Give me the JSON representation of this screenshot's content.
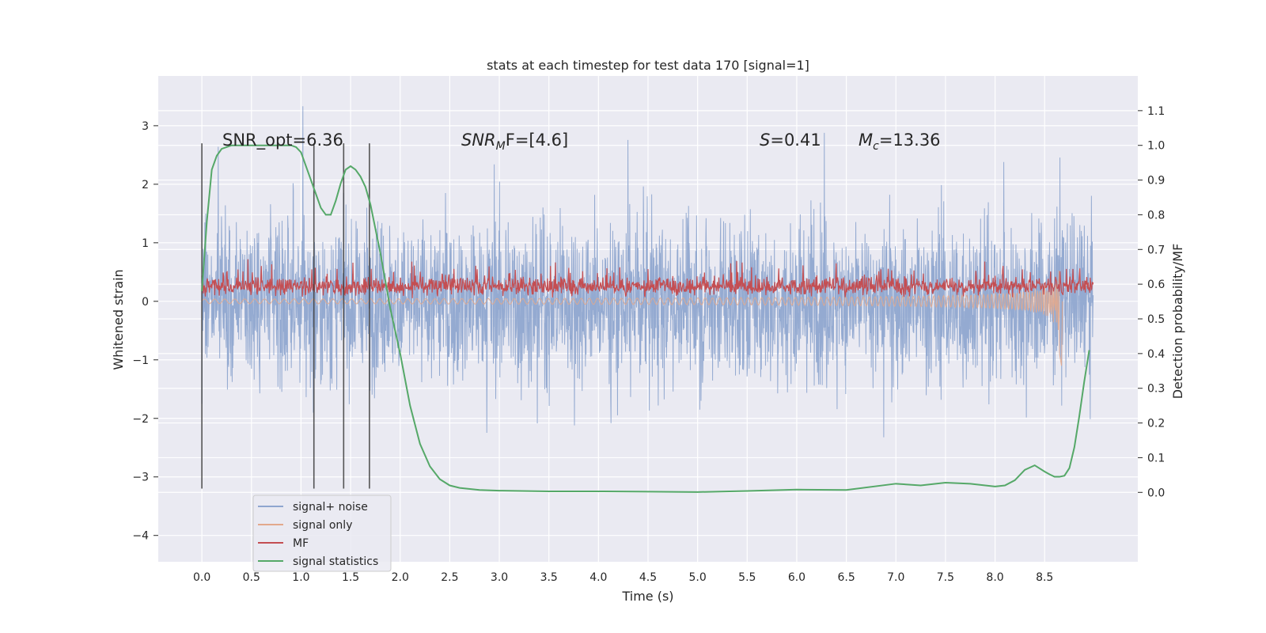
{
  "chart_data": {
    "type": "line",
    "title": "stats at each timestep for test data 170 [signal=1]",
    "xlabel": "Time (s)",
    "ylabel": "Whitened strain",
    "y2label": "Detection probability/MF",
    "xlim": [
      -0.44,
      9.44
    ],
    "ylim": [
      -4.45,
      3.85
    ],
    "y2lim": [
      -0.2,
      1.2
    ],
    "x_ticks": [
      "0.0",
      "0.5",
      "1.0",
      "1.5",
      "2.0",
      "2.5",
      "3.0",
      "3.5",
      "4.0",
      "4.5",
      "5.0",
      "5.5",
      "6.0",
      "6.5",
      "7.0",
      "7.5",
      "8.0",
      "8.5"
    ],
    "y_ticks": [
      "3",
      "2",
      "1",
      "0",
      "−1",
      "−2",
      "−3",
      "−4"
    ],
    "y2_ticks": [
      "1.1",
      "1.0",
      "0.9",
      "0.8",
      "0.7",
      "0.6",
      "0.5",
      "0.4",
      "0.3",
      "0.2",
      "0.1",
      "0.0"
    ],
    "grid": true,
    "legend_position": "lower-left",
    "annotations": {
      "snr_opt": "SNR_opt=6.36",
      "snr_mf": {
        "main": "SNR",
        "sub": "M",
        "tail": "F=[4.6]"
      },
      "s": {
        "main": "S",
        "tail": "=0.41"
      },
      "mc": {
        "main": "M",
        "sub": "c",
        "tail": "=13.36"
      }
    },
    "vertical_markers_s": [
      0.0,
      1.13,
      1.43,
      1.69
    ],
    "series": [
      {
        "name": "signal+ noise",
        "color": "#8fa6cf",
        "description_range": [
          -4.0,
          3.5
        ]
      },
      {
        "name": "signal only",
        "color": "#e3a98c"
      },
      {
        "name": "MF",
        "color": "#c44e52"
      },
      {
        "name": "signal statistics",
        "color": "#55a868",
        "axis": "right",
        "x": [
          0.0,
          0.05,
          0.1,
          0.15,
          0.2,
          0.3,
          0.4,
          0.5,
          0.6,
          0.7,
          0.8,
          0.9,
          0.95,
          1.0,
          1.05,
          1.1,
          1.15,
          1.2,
          1.25,
          1.3,
          1.35,
          1.4,
          1.45,
          1.5,
          1.55,
          1.6,
          1.65,
          1.7,
          1.75,
          1.8,
          1.85,
          1.9,
          2.0,
          2.1,
          2.2,
          2.3,
          2.4,
          2.5,
          2.6,
          2.8,
          3.0,
          3.5,
          4.0,
          4.5,
          5.0,
          5.5,
          6.0,
          6.5,
          7.0,
          7.25,
          7.5,
          7.75,
          8.0,
          8.1,
          8.2,
          8.3,
          8.4,
          8.5,
          8.55,
          8.6,
          8.65,
          8.7,
          8.75,
          8.8,
          8.85,
          8.9,
          8.95
        ],
        "y": [
          0.58,
          0.78,
          0.93,
          0.97,
          0.99,
          1.0,
          1.0,
          1.0,
          1.0,
          1.0,
          1.0,
          1.0,
          0.995,
          0.98,
          0.94,
          0.9,
          0.86,
          0.82,
          0.8,
          0.8,
          0.84,
          0.89,
          0.93,
          0.94,
          0.93,
          0.91,
          0.88,
          0.83,
          0.76,
          0.69,
          0.61,
          0.53,
          0.4,
          0.25,
          0.14,
          0.075,
          0.038,
          0.02,
          0.013,
          0.007,
          0.005,
          0.003,
          0.003,
          0.002,
          0.001,
          0.004,
          0.008,
          0.007,
          0.025,
          0.02,
          0.028,
          0.025,
          0.017,
          0.02,
          0.035,
          0.065,
          0.078,
          0.06,
          0.052,
          0.045,
          0.045,
          0.048,
          0.07,
          0.13,
          0.22,
          0.32,
          0.41
        ]
      }
    ]
  }
}
